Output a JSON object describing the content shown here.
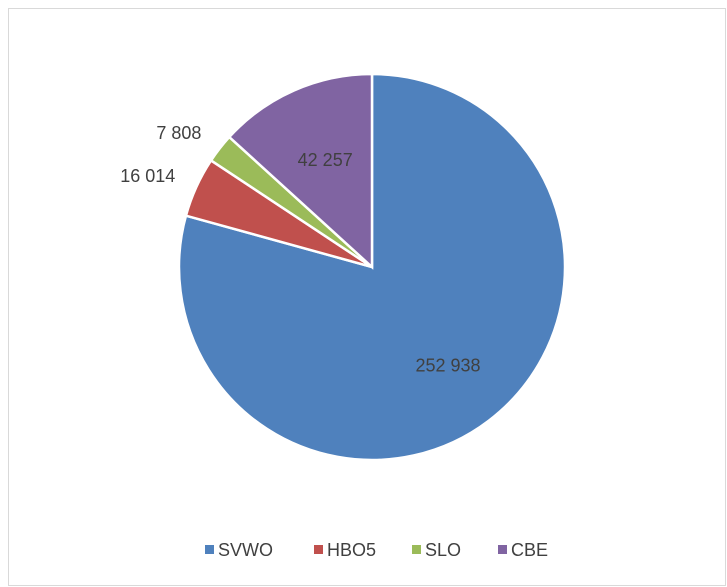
{
  "chart_data": {
    "type": "pie",
    "categories": [
      "SVWO",
      "HBO5",
      "SLO",
      "CBE"
    ],
    "values": [
      252938,
      16014,
      7808,
      42257
    ],
    "value_labels": [
      "252 938",
      "16 014",
      "7 808",
      "42 257"
    ],
    "colors": [
      "#4f81bd",
      "#c0504d",
      "#9bbb59",
      "#8064a2"
    ],
    "legend": "bottom"
  }
}
